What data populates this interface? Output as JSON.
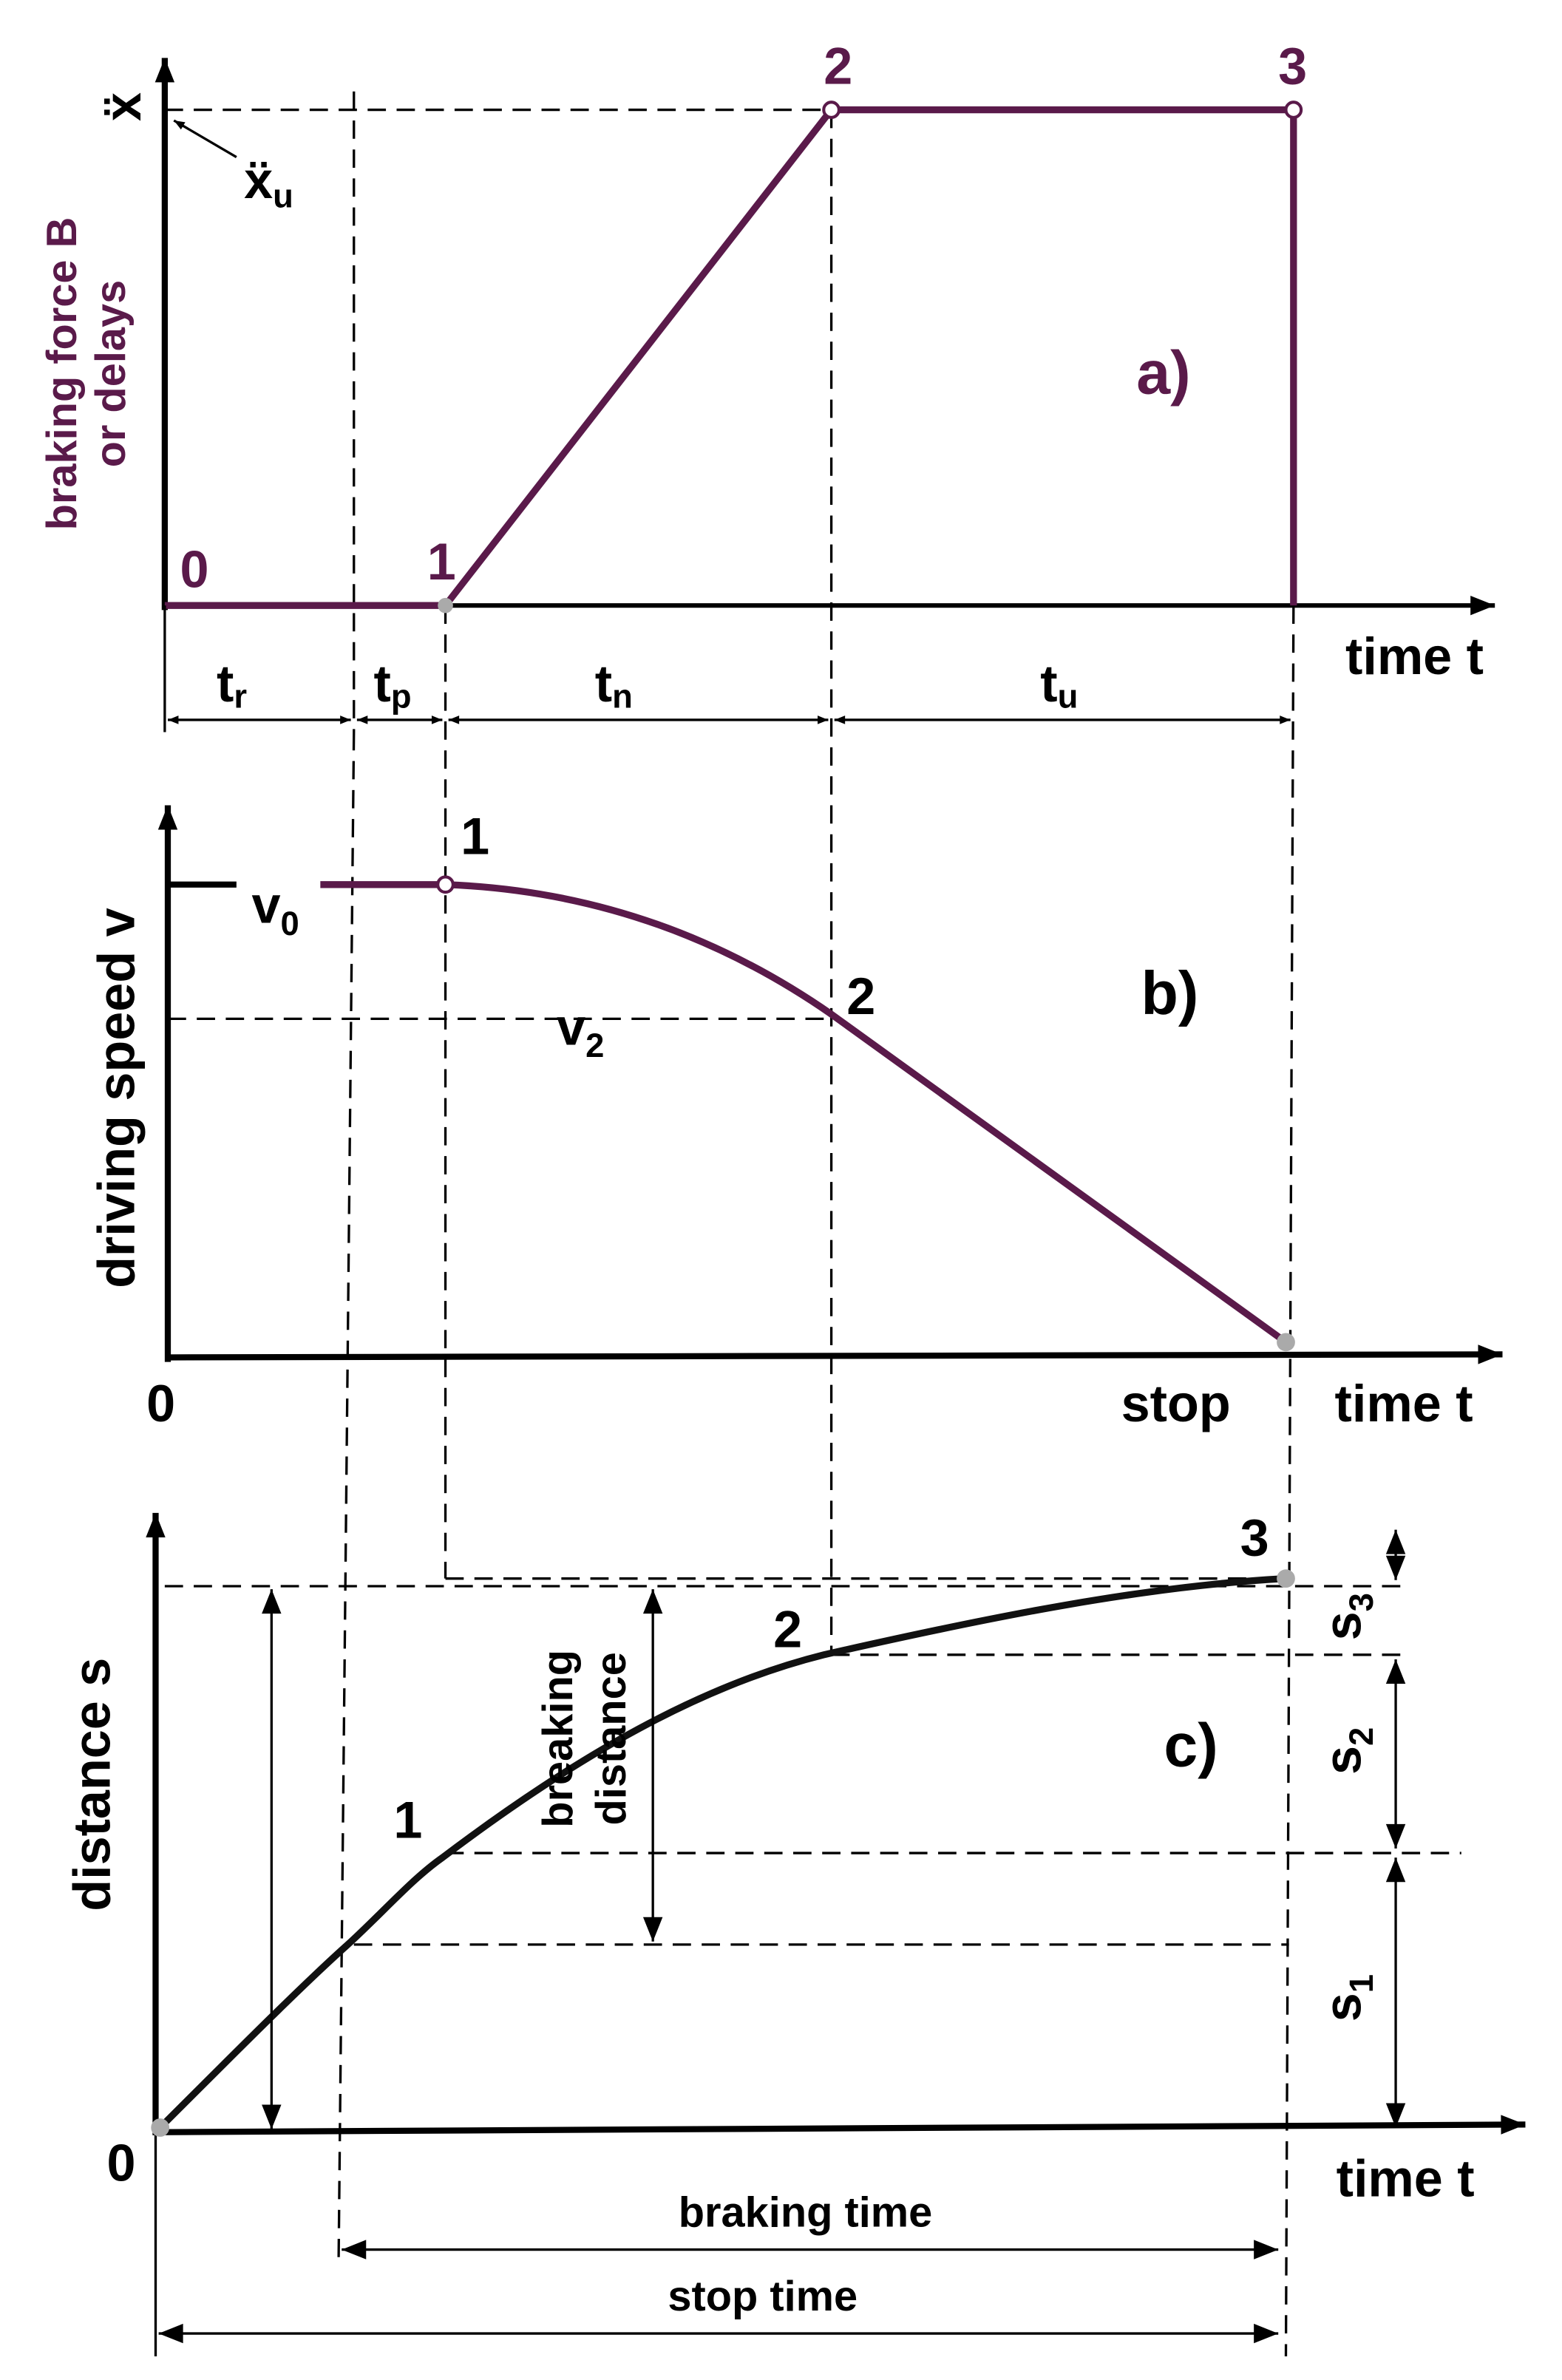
{
  "panel_a": {
    "label": "a)",
    "y_axis_label_lines": [
      "braking force B",
      "or delays"
    ],
    "y_symbol": "ẍ",
    "limit_symbol": {
      "main": "ẍ",
      "sub": "u"
    },
    "points": [
      "0",
      "1",
      "2",
      "3"
    ],
    "x_axis_label": "time t",
    "intervals": [
      {
        "main": "t",
        "sub": "r"
      },
      {
        "main": "t",
        "sub": "p"
      },
      {
        "main": "t",
        "sub": "n"
      },
      {
        "main": "t",
        "sub": "u"
      }
    ]
  },
  "panel_b": {
    "label": "b)",
    "y_axis_label": "driving speed v",
    "v0": {
      "main": "v",
      "sub": "0"
    },
    "v2": {
      "main": "v",
      "sub": "2"
    },
    "points": [
      "1",
      "2"
    ],
    "origin": "0",
    "stop": "stop",
    "x_axis_label": "time t"
  },
  "panel_c": {
    "label": "c)",
    "y_axis_label": "distance s",
    "points": [
      "0",
      "1",
      "2",
      "3"
    ],
    "breaking_distance_lines": [
      "breaking",
      "distance"
    ],
    "segments": [
      {
        "main": "s",
        "sub": "1"
      },
      {
        "main": "s",
        "sub": "2"
      },
      {
        "main": "s",
        "sub": "3"
      }
    ],
    "x_axis_label": "time t",
    "braking_time": "braking time",
    "stop_time": "stop time"
  }
}
